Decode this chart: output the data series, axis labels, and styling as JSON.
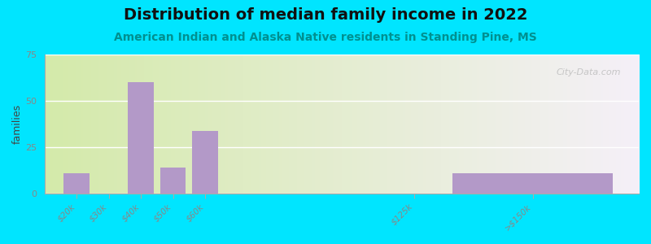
{
  "title": "Distribution of median family income in 2022",
  "subtitle": "American Indian and Alaska Native residents in Standing Pine, MS",
  "x_positions": [
    20,
    30,
    40,
    50,
    60,
    125,
    162
  ],
  "bar_widths": [
    8,
    8,
    8,
    8,
    8,
    8,
    50
  ],
  "values": [
    11,
    0,
    60,
    14,
    34,
    0,
    11
  ],
  "tick_positions": [
    20,
    30,
    40,
    50,
    60,
    125,
    162
  ],
  "tick_labels": [
    "$20k",
    "$30k",
    "$40k",
    "$50k",
    "$60k",
    "$125k",
    ">$150k"
  ],
  "bar_color": "#b399c8",
  "ylabel": "families",
  "ylim": [
    0,
    75
  ],
  "yticks": [
    0,
    25,
    50,
    75
  ],
  "xlim": [
    10,
    195
  ],
  "bg_color_left": "#d4eaaa",
  "bg_color_right": "#f5f0f5",
  "outer_bg": "#00e5ff",
  "title_fontsize": 14,
  "subtitle_fontsize": 10,
  "subtitle_color": "#009090",
  "watermark": "City-Data.com",
  "grid_color": "#ffffff",
  "tick_color": "#888888"
}
